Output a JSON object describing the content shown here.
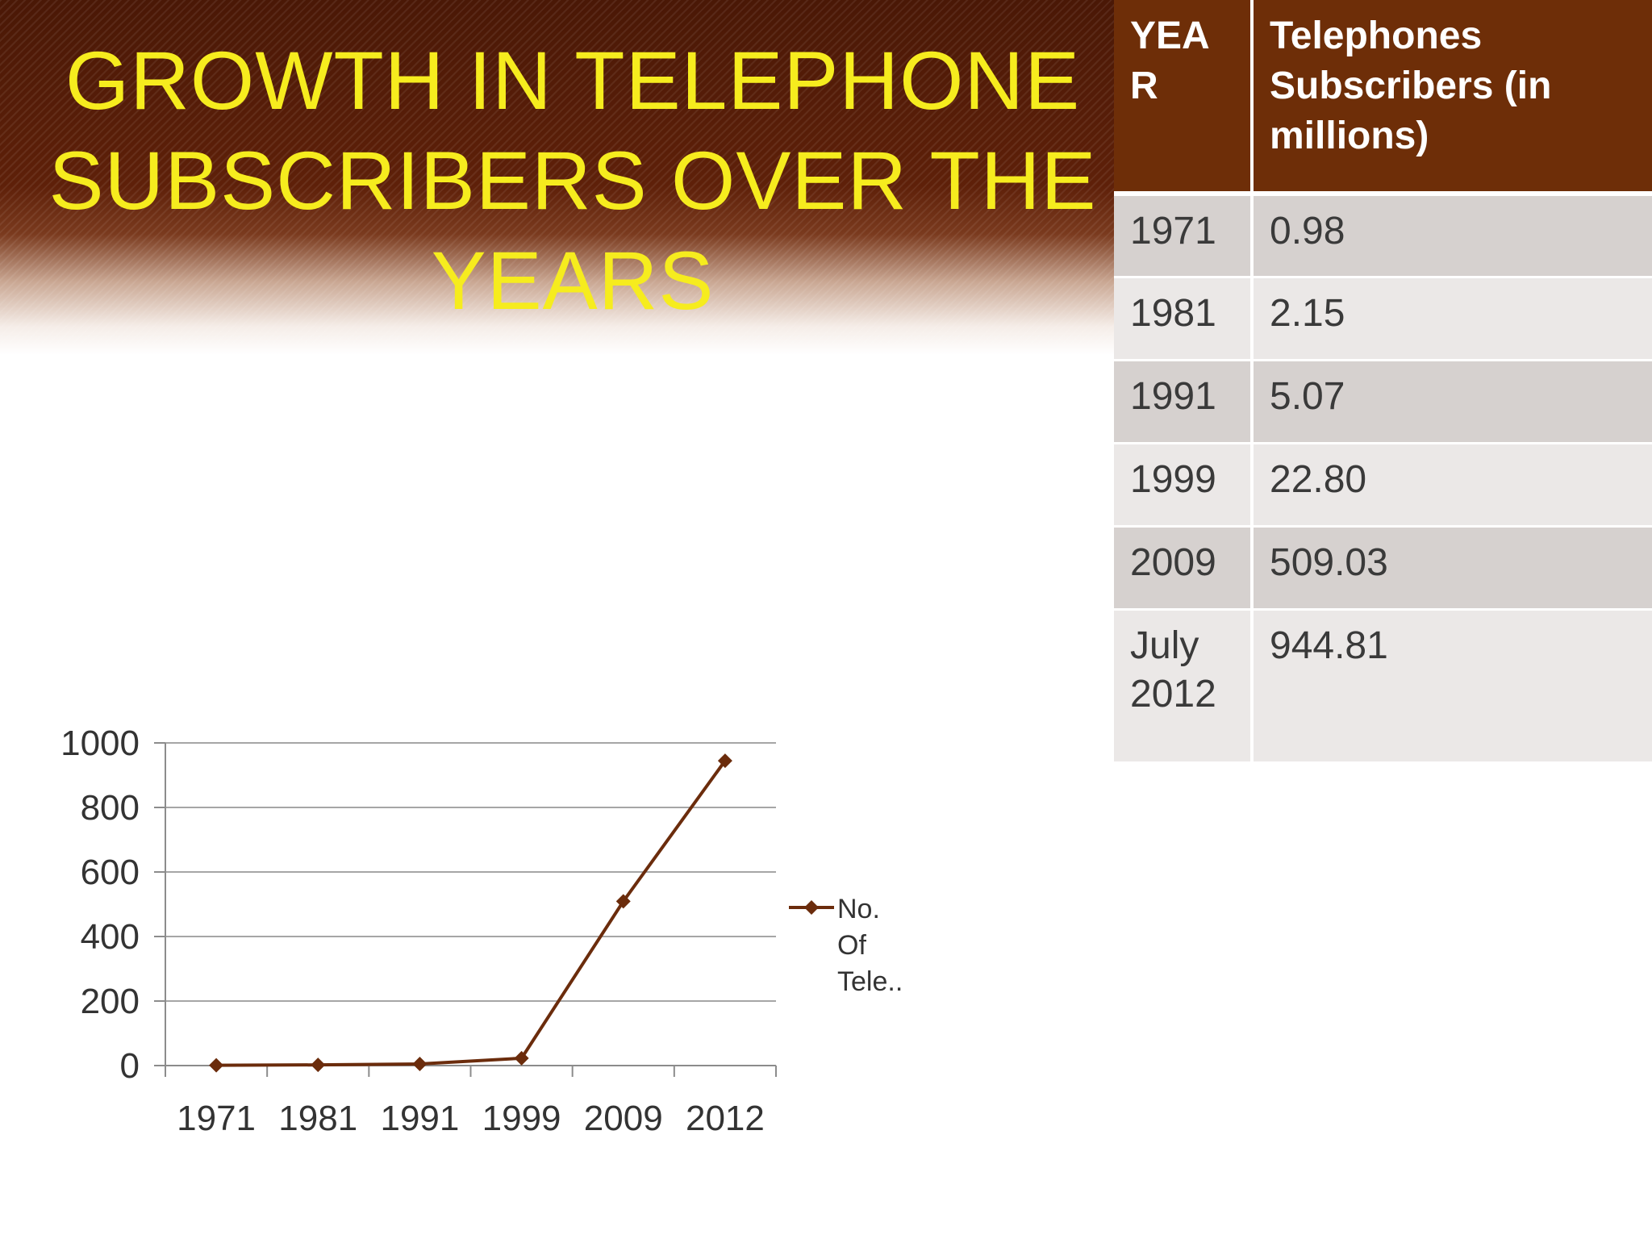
{
  "slide": {
    "title": "GROWTH IN TELEPHONE SUBSCRIBERS OVER THE YEARS"
  },
  "table": {
    "headers": [
      "YEA R",
      "Telephones Subscribers (in millions)"
    ],
    "rows": [
      [
        "1971",
        "0.98"
      ],
      [
        "1981",
        "2.15"
      ],
      [
        "1991",
        "5.07"
      ],
      [
        "1999",
        "22.80"
      ],
      [
        "2009",
        "509.03"
      ],
      [
        "July 2012",
        "944.81"
      ]
    ]
  },
  "chart_data": {
    "type": "line",
    "categories": [
      "1971",
      "1981",
      "1991",
      "1999",
      "2009",
      "2012"
    ],
    "series": [
      {
        "name": "No. Of Tele..",
        "values": [
          0.98,
          2.15,
          5.07,
          22.8,
          509.03,
          944.81
        ]
      }
    ],
    "title": "",
    "xlabel": "",
    "ylabel": "",
    "ylim": [
      0,
      1000
    ],
    "yticks": [
      0,
      200,
      400,
      600,
      800,
      1000
    ],
    "grid": true,
    "legend": "right",
    "colors": {
      "line": "#6b2c0c",
      "grid": "#a6a6a6",
      "axis": "#8c8c8c",
      "text": "#333333"
    }
  }
}
